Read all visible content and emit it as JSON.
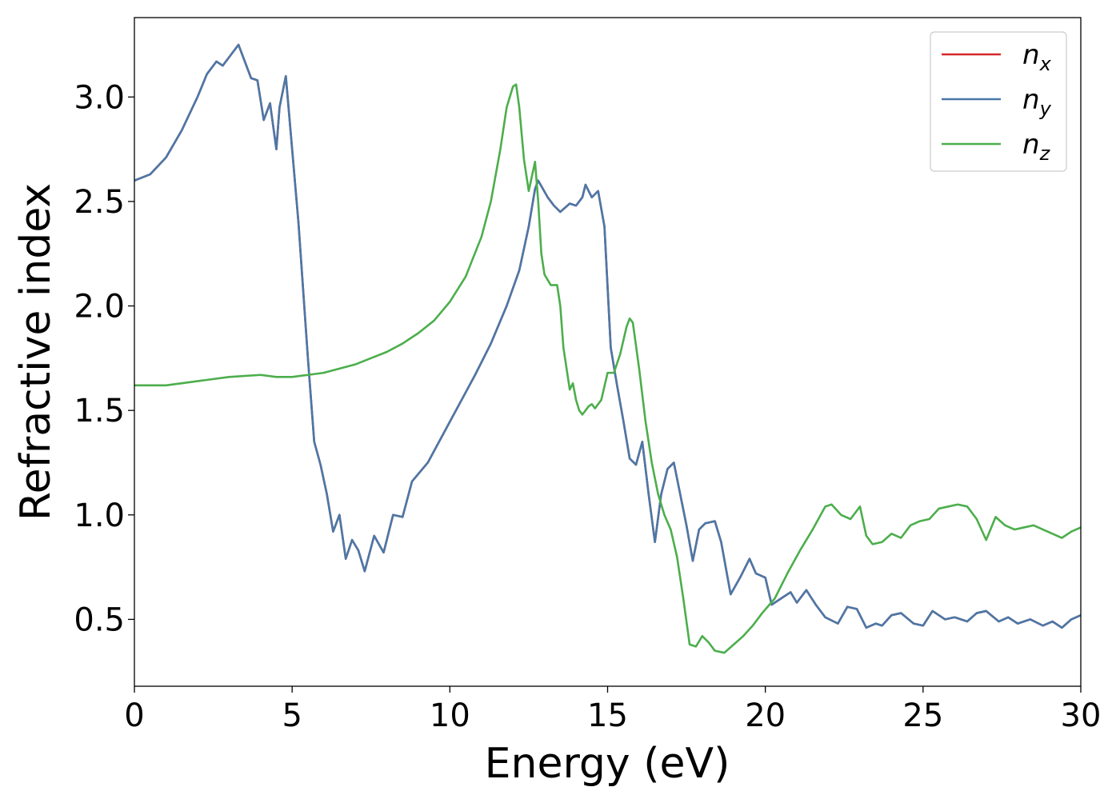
{
  "chart_data": {
    "type": "line",
    "title": "",
    "xlabel": "Energy (eV)",
    "ylabel": "Refractive index",
    "xlim": [
      0,
      30
    ],
    "ylim": [
      0.18,
      3.38
    ],
    "xticks": [
      0,
      5,
      10,
      15,
      20,
      25,
      30
    ],
    "xtick_labels": [
      "0",
      "5",
      "10",
      "15",
      "20",
      "25",
      "30"
    ],
    "yticks": [
      0.5,
      1.0,
      1.5,
      2.0,
      2.5,
      3.0
    ],
    "ytick_labels": [
      "0.5",
      "1.0",
      "1.5",
      "2.0",
      "2.5",
      "3.0"
    ],
    "grid": false,
    "legend_position": "top-right",
    "series": [
      {
        "name": "n_x",
        "legend_main": "n",
        "legend_sub": "x",
        "color": "#d62728",
        "x": [
          0,
          0.5,
          1.0,
          1.5,
          2.0,
          2.3,
          2.6,
          2.8,
          3.0,
          3.3,
          3.5,
          3.7,
          3.9,
          4.1,
          4.3,
          4.5,
          4.6,
          4.8,
          5.0,
          5.2,
          5.5,
          5.7,
          5.9,
          6.1,
          6.3,
          6.5,
          6.7,
          6.9,
          7.1,
          7.3,
          7.6,
          7.9,
          8.2,
          8.5,
          8.8,
          9.3,
          9.8,
          10.3,
          10.8,
          11.3,
          11.8,
          12.2,
          12.5,
          12.7,
          12.8,
          13.1,
          13.3,
          13.5,
          13.8,
          14.0,
          14.2,
          14.3,
          14.5,
          14.7,
          14.9,
          15.1,
          15.3,
          15.5,
          15.7,
          15.9,
          16.1,
          16.3,
          16.5,
          16.7,
          16.9,
          17.1,
          17.3,
          17.5,
          17.7,
          17.9,
          18.1,
          18.4,
          18.6,
          18.9,
          19.2,
          19.5,
          19.7,
          20.0,
          20.2,
          20.5,
          20.8,
          21.0,
          21.3,
          21.6,
          21.9,
          22.3,
          22.6,
          22.9,
          23.2,
          23.5,
          23.7,
          24.0,
          24.3,
          24.7,
          25.0,
          25.3,
          25.7,
          26.0,
          26.4,
          26.7,
          27.0,
          27.4,
          27.7,
          28.0,
          28.4,
          28.8,
          29.1,
          29.4,
          29.7,
          30.0
        ],
        "y": [
          2.6,
          2.63,
          2.71,
          2.84,
          3.0,
          3.11,
          3.17,
          3.15,
          3.19,
          3.25,
          3.17,
          3.09,
          3.08,
          2.89,
          2.97,
          2.75,
          2.95,
          3.1,
          2.75,
          2.4,
          1.75,
          1.35,
          1.24,
          1.1,
          0.92,
          1.0,
          0.79,
          0.88,
          0.83,
          0.73,
          0.9,
          0.82,
          1.0,
          0.99,
          1.16,
          1.25,
          1.39,
          1.53,
          1.67,
          1.82,
          2.0,
          2.17,
          2.38,
          2.56,
          2.6,
          2.52,
          2.48,
          2.45,
          2.49,
          2.48,
          2.52,
          2.58,
          2.52,
          2.55,
          2.38,
          1.8,
          1.62,
          1.45,
          1.27,
          1.24,
          1.35,
          1.1,
          0.87,
          1.1,
          1.22,
          1.25,
          1.1,
          0.95,
          0.78,
          0.93,
          0.96,
          0.97,
          0.87,
          0.62,
          0.7,
          0.79,
          0.72,
          0.7,
          0.57,
          0.6,
          0.63,
          0.58,
          0.64,
          0.57,
          0.51,
          0.48,
          0.56,
          0.55,
          0.46,
          0.48,
          0.47,
          0.52,
          0.53,
          0.48,
          0.47,
          0.54,
          0.5,
          0.51,
          0.49,
          0.53,
          0.54,
          0.49,
          0.51,
          0.48,
          0.5,
          0.47,
          0.49,
          0.46,
          0.5,
          0.52
        ]
      },
      {
        "name": "n_y",
        "legend_main": "n",
        "legend_sub": "y",
        "color": "#4a78a8",
        "x": [
          0,
          0.5,
          1.0,
          1.5,
          2.0,
          2.3,
          2.6,
          2.8,
          3.0,
          3.3,
          3.5,
          3.7,
          3.9,
          4.1,
          4.3,
          4.5,
          4.6,
          4.8,
          5.0,
          5.2,
          5.5,
          5.7,
          5.9,
          6.1,
          6.3,
          6.5,
          6.7,
          6.9,
          7.1,
          7.3,
          7.6,
          7.9,
          8.2,
          8.5,
          8.8,
          9.3,
          9.8,
          10.3,
          10.8,
          11.3,
          11.8,
          12.2,
          12.5,
          12.7,
          12.8,
          13.1,
          13.3,
          13.5,
          13.8,
          14.0,
          14.2,
          14.3,
          14.5,
          14.7,
          14.9,
          15.1,
          15.3,
          15.5,
          15.7,
          15.9,
          16.1,
          16.3,
          16.5,
          16.7,
          16.9,
          17.1,
          17.3,
          17.5,
          17.7,
          17.9,
          18.1,
          18.4,
          18.6,
          18.9,
          19.2,
          19.5,
          19.7,
          20.0,
          20.2,
          20.5,
          20.8,
          21.0,
          21.3,
          21.6,
          21.9,
          22.3,
          22.6,
          22.9,
          23.2,
          23.5,
          23.7,
          24.0,
          24.3,
          24.7,
          25.0,
          25.3,
          25.7,
          26.0,
          26.4,
          26.7,
          27.0,
          27.4,
          27.7,
          28.0,
          28.4,
          28.8,
          29.1,
          29.4,
          29.7,
          30.0
        ],
        "y": [
          2.6,
          2.63,
          2.71,
          2.84,
          3.0,
          3.11,
          3.17,
          3.15,
          3.19,
          3.25,
          3.17,
          3.09,
          3.08,
          2.89,
          2.97,
          2.75,
          2.95,
          3.1,
          2.75,
          2.4,
          1.75,
          1.35,
          1.24,
          1.1,
          0.92,
          1.0,
          0.79,
          0.88,
          0.83,
          0.73,
          0.9,
          0.82,
          1.0,
          0.99,
          1.16,
          1.25,
          1.39,
          1.53,
          1.67,
          1.82,
          2.0,
          2.17,
          2.38,
          2.56,
          2.6,
          2.52,
          2.48,
          2.45,
          2.49,
          2.48,
          2.52,
          2.58,
          2.52,
          2.55,
          2.38,
          1.8,
          1.62,
          1.45,
          1.27,
          1.24,
          1.35,
          1.1,
          0.87,
          1.1,
          1.22,
          1.25,
          1.1,
          0.95,
          0.78,
          0.93,
          0.96,
          0.97,
          0.87,
          0.62,
          0.7,
          0.79,
          0.72,
          0.7,
          0.57,
          0.6,
          0.63,
          0.58,
          0.64,
          0.57,
          0.51,
          0.48,
          0.56,
          0.55,
          0.46,
          0.48,
          0.47,
          0.52,
          0.53,
          0.48,
          0.47,
          0.54,
          0.5,
          0.51,
          0.49,
          0.53,
          0.54,
          0.49,
          0.51,
          0.48,
          0.5,
          0.47,
          0.49,
          0.46,
          0.5,
          0.52
        ]
      },
      {
        "name": "n_z",
        "legend_main": "n",
        "legend_sub": "z",
        "color": "#4cae4c",
        "x": [
          0,
          1,
          2,
          3,
          4,
          4.5,
          5,
          5.5,
          6,
          6.5,
          7,
          7.5,
          8,
          8.5,
          9,
          9.5,
          10,
          10.5,
          11,
          11.3,
          11.6,
          11.8,
          12.0,
          12.1,
          12.2,
          12.35,
          12.5,
          12.6,
          12.7,
          12.8,
          12.9,
          13.0,
          13.2,
          13.4,
          13.5,
          13.6,
          13.8,
          13.9,
          14.0,
          14.1,
          14.2,
          14.4,
          14.5,
          14.6,
          14.8,
          15.0,
          15.2,
          15.4,
          15.6,
          15.7,
          15.8,
          16.0,
          16.2,
          16.4,
          16.6,
          16.8,
          17.0,
          17.2,
          17.4,
          17.6,
          17.8,
          18.0,
          18.2,
          18.4,
          18.7,
          19.0,
          19.3,
          19.6,
          19.9,
          20.3,
          20.7,
          21.1,
          21.5,
          21.9,
          22.1,
          22.4,
          22.7,
          23.0,
          23.2,
          23.4,
          23.7,
          24.0,
          24.3,
          24.6,
          24.9,
          25.2,
          25.5,
          25.8,
          26.1,
          26.4,
          26.7,
          27.0,
          27.3,
          27.6,
          27.9,
          28.2,
          28.5,
          28.8,
          29.1,
          29.4,
          29.7,
          30.0
        ],
        "y": [
          1.62,
          1.62,
          1.64,
          1.66,
          1.67,
          1.66,
          1.66,
          1.67,
          1.68,
          1.7,
          1.72,
          1.75,
          1.78,
          1.82,
          1.87,
          1.93,
          2.02,
          2.14,
          2.33,
          2.5,
          2.75,
          2.95,
          3.05,
          3.06,
          2.95,
          2.7,
          2.55,
          2.62,
          2.69,
          2.5,
          2.25,
          2.15,
          2.1,
          2.1,
          2.0,
          1.8,
          1.6,
          1.63,
          1.55,
          1.5,
          1.48,
          1.52,
          1.53,
          1.51,
          1.55,
          1.68,
          1.68,
          1.77,
          1.9,
          1.94,
          1.92,
          1.7,
          1.45,
          1.25,
          1.1,
          1.0,
          0.93,
          0.8,
          0.6,
          0.38,
          0.37,
          0.42,
          0.39,
          0.35,
          0.34,
          0.38,
          0.42,
          0.47,
          0.53,
          0.6,
          0.72,
          0.83,
          0.93,
          1.04,
          1.05,
          1.0,
          0.98,
          1.04,
          0.9,
          0.86,
          0.87,
          0.91,
          0.89,
          0.95,
          0.97,
          0.98,
          1.03,
          1.04,
          1.05,
          1.04,
          0.98,
          0.88,
          0.99,
          0.95,
          0.93,
          0.94,
          0.95,
          0.93,
          0.91,
          0.89,
          0.92,
          0.94
        ]
      }
    ]
  }
}
